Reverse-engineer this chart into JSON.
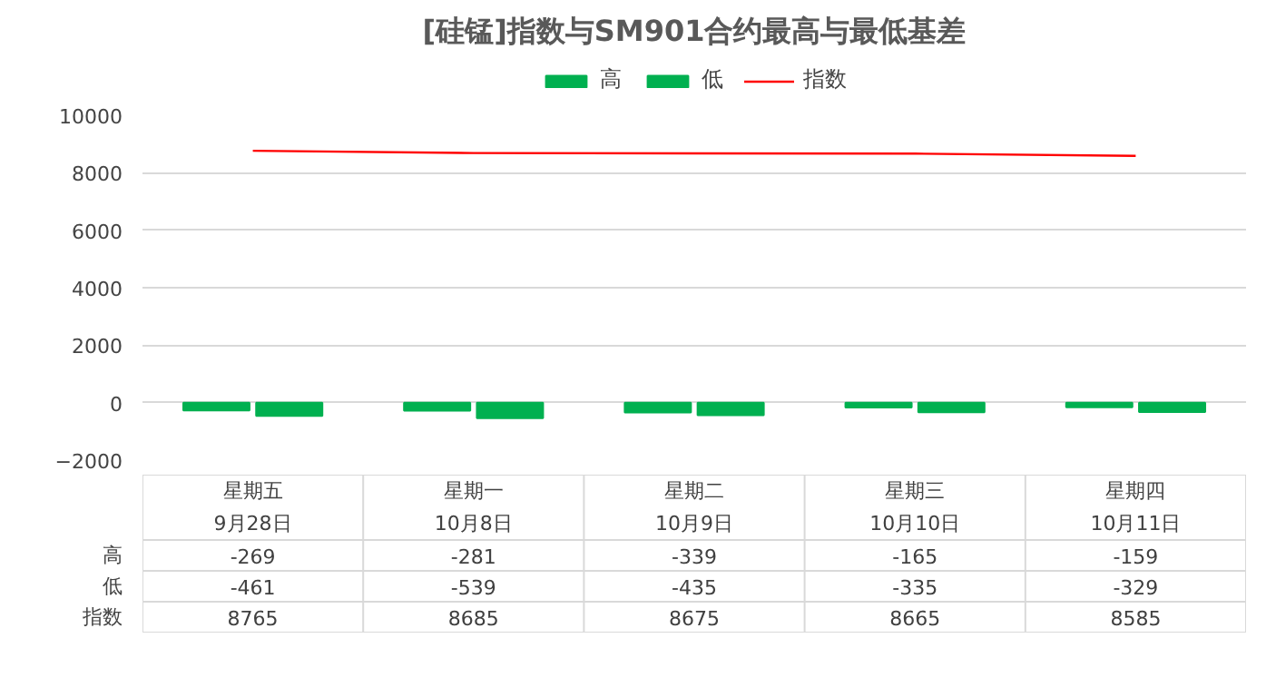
{
  "chart_data": {
    "type": "bar",
    "title": "[硅锰]指数与SM901合约最高与最低基差",
    "categories": [
      "星期五\n9月28日",
      "星期一\n10月8日",
      "星期二\n10月9日",
      "星期三\n10月10日",
      "星期四\n10月11日"
    ],
    "series": [
      {
        "name": "高",
        "color": "#00b050",
        "values": [
          -269,
          -281,
          -339,
          -165,
          -159
        ]
      },
      {
        "name": "低",
        "color": "#00b050",
        "values": [
          -461,
          -539,
          -435,
          -335,
          -329
        ]
      },
      {
        "name": "指数",
        "type": "line",
        "color": "#ff0000",
        "values": [
          8765,
          8685,
          8675,
          8665,
          8585
        ]
      }
    ],
    "ylim": [
      -2000,
      10000
    ],
    "yticks": [
      -2000,
      0,
      2000,
      4000,
      6000,
      8000,
      10000
    ],
    "grid": "y",
    "legend": "top",
    "data_labels": true
  }
}
